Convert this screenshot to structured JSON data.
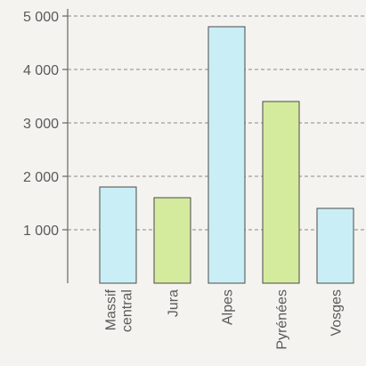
{
  "chart_data": {
    "type": "bar",
    "categories": [
      [
        "Massif",
        "central"
      ],
      [
        "Jura"
      ],
      [
        "Alpes"
      ],
      [
        "Pyrénées"
      ],
      [
        "Vosges"
      ]
    ],
    "values": [
      1800,
      1600,
      4800,
      3400,
      1400
    ],
    "bar_colors": [
      "#c9eef6",
      "#d4eb9e",
      "#c9eef6",
      "#d4eb9e",
      "#c9eef6"
    ],
    "yticks": [
      1000,
      2000,
      3000,
      4000,
      5000
    ],
    "ytick_labels": [
      "1 000",
      "2 000",
      "3 000",
      "4 000",
      "5 000"
    ],
    "ylim": [
      0,
      5000
    ],
    "grid": true,
    "title": "",
    "xlabel": "",
    "ylabel": ""
  }
}
